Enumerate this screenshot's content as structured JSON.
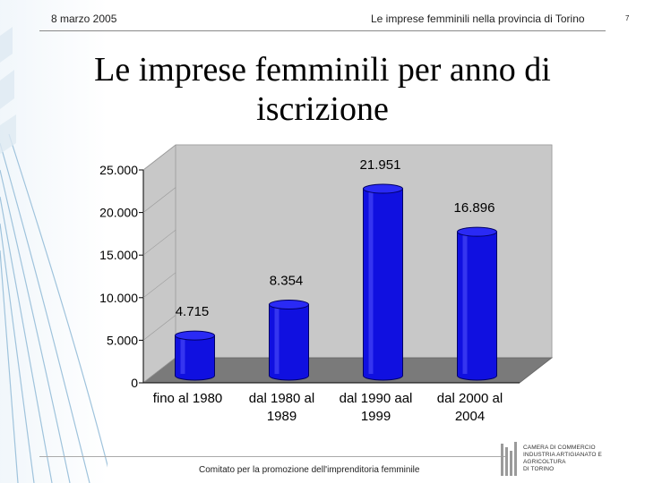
{
  "header": {
    "date": "8 marzo 2005",
    "title": "Le imprese femminili nella provincia di Torino",
    "page": "7"
  },
  "slide": {
    "title_line1": "Le imprese femminili per anno di",
    "title_line2": "iscrizione"
  },
  "footer": {
    "text": "Comitato per la promozione dell'imprenditoria femminile"
  },
  "logo": {
    "line1": "CAMERA DI COMMERCIO",
    "line2": "INDUSTRIA ARTIGIANATO E AGRICOLTURA",
    "line3": "DI TORINO"
  },
  "chart_data": {
    "type": "bar",
    "categories": [
      [
        "fino al 1980",
        ""
      ],
      [
        "dal 1980 al",
        "1989"
      ],
      [
        "dal 1990 aal",
        "1999"
      ],
      [
        "dal 2000 al",
        "2004"
      ]
    ],
    "values": [
      4715,
      8354,
      21951,
      16896
    ],
    "data_labels": [
      "4.715",
      "8.354",
      "21.951",
      "16.896"
    ],
    "y_ticks": [
      0,
      5000,
      10000,
      15000,
      20000,
      25000
    ],
    "y_tick_labels": [
      "0",
      "5.000",
      "10.000",
      "15.000",
      "20.000",
      "25.000"
    ],
    "ylim": [
      0,
      25000
    ],
    "bar_color": "#1010e0",
    "wall_color": "#c8c8c8",
    "floor_color": "#7a7a7a",
    "title": "",
    "xlabel": "",
    "ylabel": ""
  }
}
